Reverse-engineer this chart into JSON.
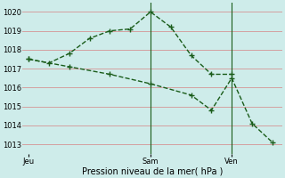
{
  "line1_x": [
    0,
    1,
    2,
    3,
    4,
    5,
    6,
    7,
    8,
    9,
    10
  ],
  "line1_y": [
    1017.5,
    1017.3,
    1017.8,
    1018.6,
    1019.0,
    1019.1,
    1020.0,
    1019.2,
    1017.7,
    1016.7,
    1016.7
  ],
  "line2_x": [
    0,
    2,
    4,
    6,
    8,
    9,
    10,
    11,
    12
  ],
  "line2_y": [
    1017.5,
    1017.1,
    1016.7,
    1016.2,
    1015.6,
    1014.8,
    1016.5,
    1014.1,
    1013.1
  ],
  "line_color": "#1a5c1a",
  "bg_color": "#ceecea",
  "grid_color": "#d4a0a0",
  "ylabel_ticks": [
    1013,
    1014,
    1015,
    1016,
    1017,
    1018,
    1019,
    1020
  ],
  "xtick_positions": [
    0,
    6,
    10
  ],
  "xtick_labels": [
    "Jeu",
    "Sam",
    "Ven"
  ],
  "vline_positions": [
    6,
    10
  ],
  "xlabel": "Pression niveau de la mer( hPa )",
  "ylim": [
    1012.5,
    1020.5
  ],
  "xlim": [
    -0.3,
    12.5
  ]
}
